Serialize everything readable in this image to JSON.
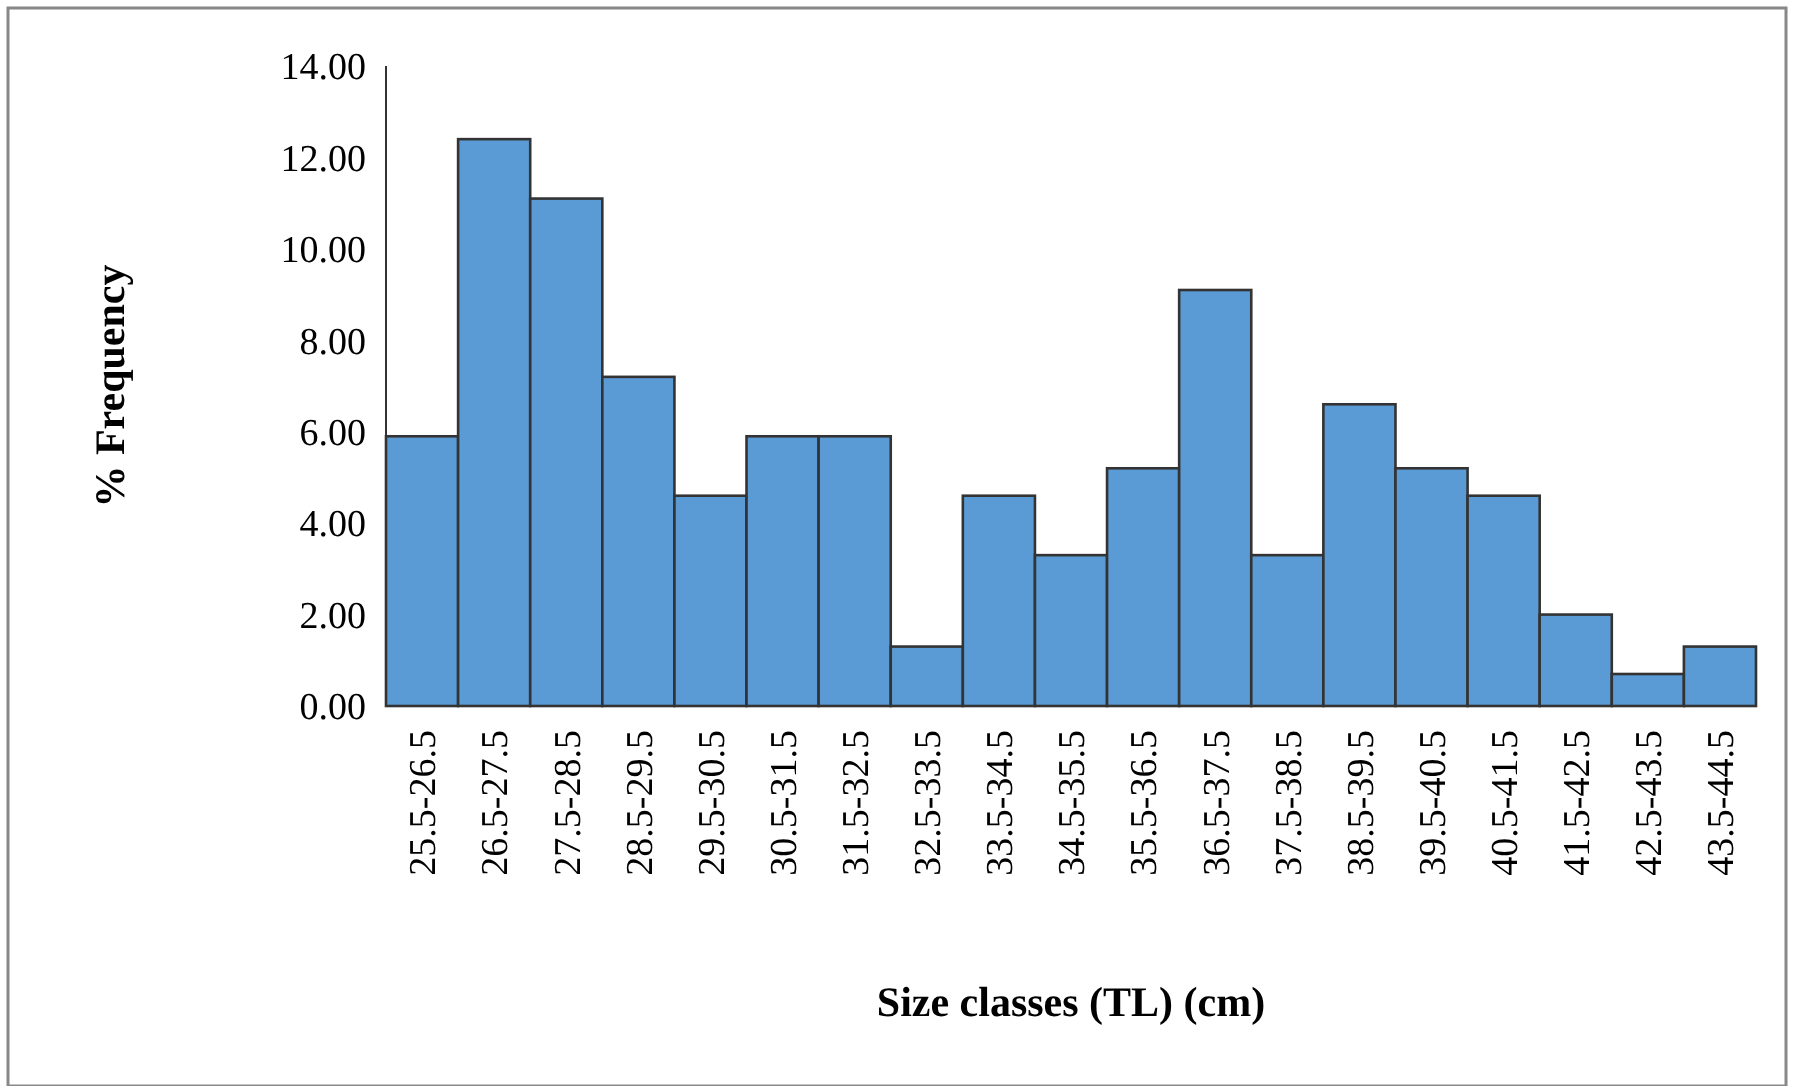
{
  "chart_data": {
    "type": "bar",
    "xlabel": "Size classes (TL) (cm)",
    "ylabel": "% Frequency",
    "categories": [
      "25.5-26.5",
      "26.5-27.5",
      "27.5-28.5",
      "28.5-29.5",
      "29.5-30.5",
      "30.5-31.5",
      "31.5-32.5",
      "32.5-33.5",
      "33.5-34.5",
      "34.5-35.5",
      "35.5-36.5",
      "36.5-37.5",
      "37.5-38.5",
      "38.5-39.5",
      "39.5-40.5",
      "40.5-41.5",
      "41.5-42.5",
      "42.5-43.5",
      "43.5-44.5"
    ],
    "values": [
      5.9,
      12.4,
      11.1,
      7.2,
      4.6,
      5.9,
      5.9,
      1.3,
      4.6,
      3.3,
      5.2,
      9.1,
      3.3,
      6.6,
      5.2,
      4.6,
      2.0,
      0.7,
      1.3
    ],
    "color": "#5b9bd5",
    "ylim": [
      0,
      14
    ],
    "yticks": [
      {
        "value": 0,
        "label": "0.00"
      },
      {
        "value": 2,
        "label": "2.00"
      },
      {
        "value": 4,
        "label": "4.00"
      },
      {
        "value": 6,
        "label": "6.00"
      },
      {
        "value": 8,
        "label": "8.00"
      },
      {
        "value": 10,
        "label": "10.00"
      },
      {
        "value": 12,
        "label": "12.00"
      },
      {
        "value": 14,
        "label": "14.00"
      }
    ],
    "grid": false
  }
}
